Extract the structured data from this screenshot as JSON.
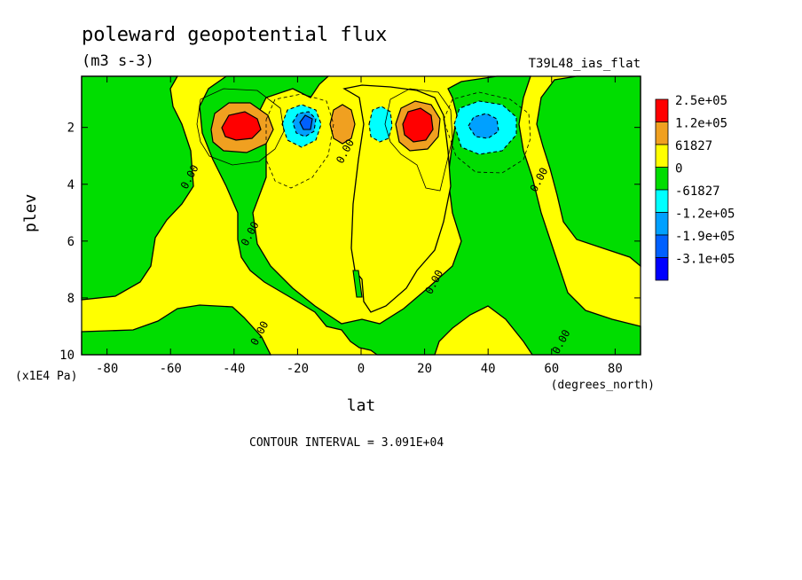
{
  "chart_data": {
    "type": "heatmap",
    "title": "poleward geopotential flux",
    "units": "(m3 s-3)",
    "run_label": "T39L48_ias_flat",
    "xlabel": "lat",
    "xunits": "(degrees_north)",
    "ylabel": "plev",
    "yunits": "(x1E4 Pa)",
    "xlim": [
      -88,
      88
    ],
    "ylim": [
      10,
      0.2
    ],
    "x_ticks": [
      -80,
      -60,
      -40,
      -20,
      0,
      20,
      40,
      60,
      80
    ],
    "y_ticks": [
      2,
      4,
      6,
      8,
      10
    ],
    "footer": "CONTOUR INTERVAL = 3.091E+04",
    "legend": {
      "placement": "right",
      "levels": [
        {
          "label": "2.5e+05",
          "color": "#ff0000"
        },
        {
          "label": "1.2e+05",
          "color": "#f0a020"
        },
        {
          "label": "61827",
          "color": "#ffff00"
        },
        {
          "label": "0",
          "color": "#00dd00"
        },
        {
          "label": "-61827",
          "color": "#00ffff"
        },
        {
          "label": "-1.2e+05",
          "color": "#00a0ff"
        },
        {
          "label": "-1.9e+05",
          "color": "#0060ff"
        },
        {
          "label": "-3.1e+05",
          "color": "#0000ff"
        }
      ]
    },
    "contour_labels": [
      {
        "text": "0.00",
        "lat": -53,
        "plev": 3.8
      },
      {
        "text": "0.00",
        "lat": -34,
        "plev": 5.8
      },
      {
        "text": "0.00",
        "lat": -31,
        "plev": 9.3
      },
      {
        "text": "0.00",
        "lat": -4,
        "plev": 2.9
      },
      {
        "text": "0.00",
        "lat": 24,
        "plev": 7.5
      },
      {
        "text": "0.00",
        "lat": 57,
        "plev": 3.9
      },
      {
        "text": "0.00",
        "lat": 64,
        "plev": 9.6
      }
    ],
    "extrema": [
      {
        "lat": -38,
        "plev": 1.9,
        "value_level": "2.5e+05"
      },
      {
        "lat": -18,
        "plev": 1.8,
        "value_level": "-3.1e+05"
      },
      {
        "lat": -6,
        "plev": 1.8,
        "value_level": "1.2e+05"
      },
      {
        "lat": 6,
        "plev": 1.8,
        "value_level": "-1.2e+05"
      },
      {
        "lat": 18,
        "plev": 1.8,
        "value_level": "2.5e+05"
      },
      {
        "lat": 38,
        "plev": 1.9,
        "value_level": "-1.9e+05"
      }
    ]
  }
}
